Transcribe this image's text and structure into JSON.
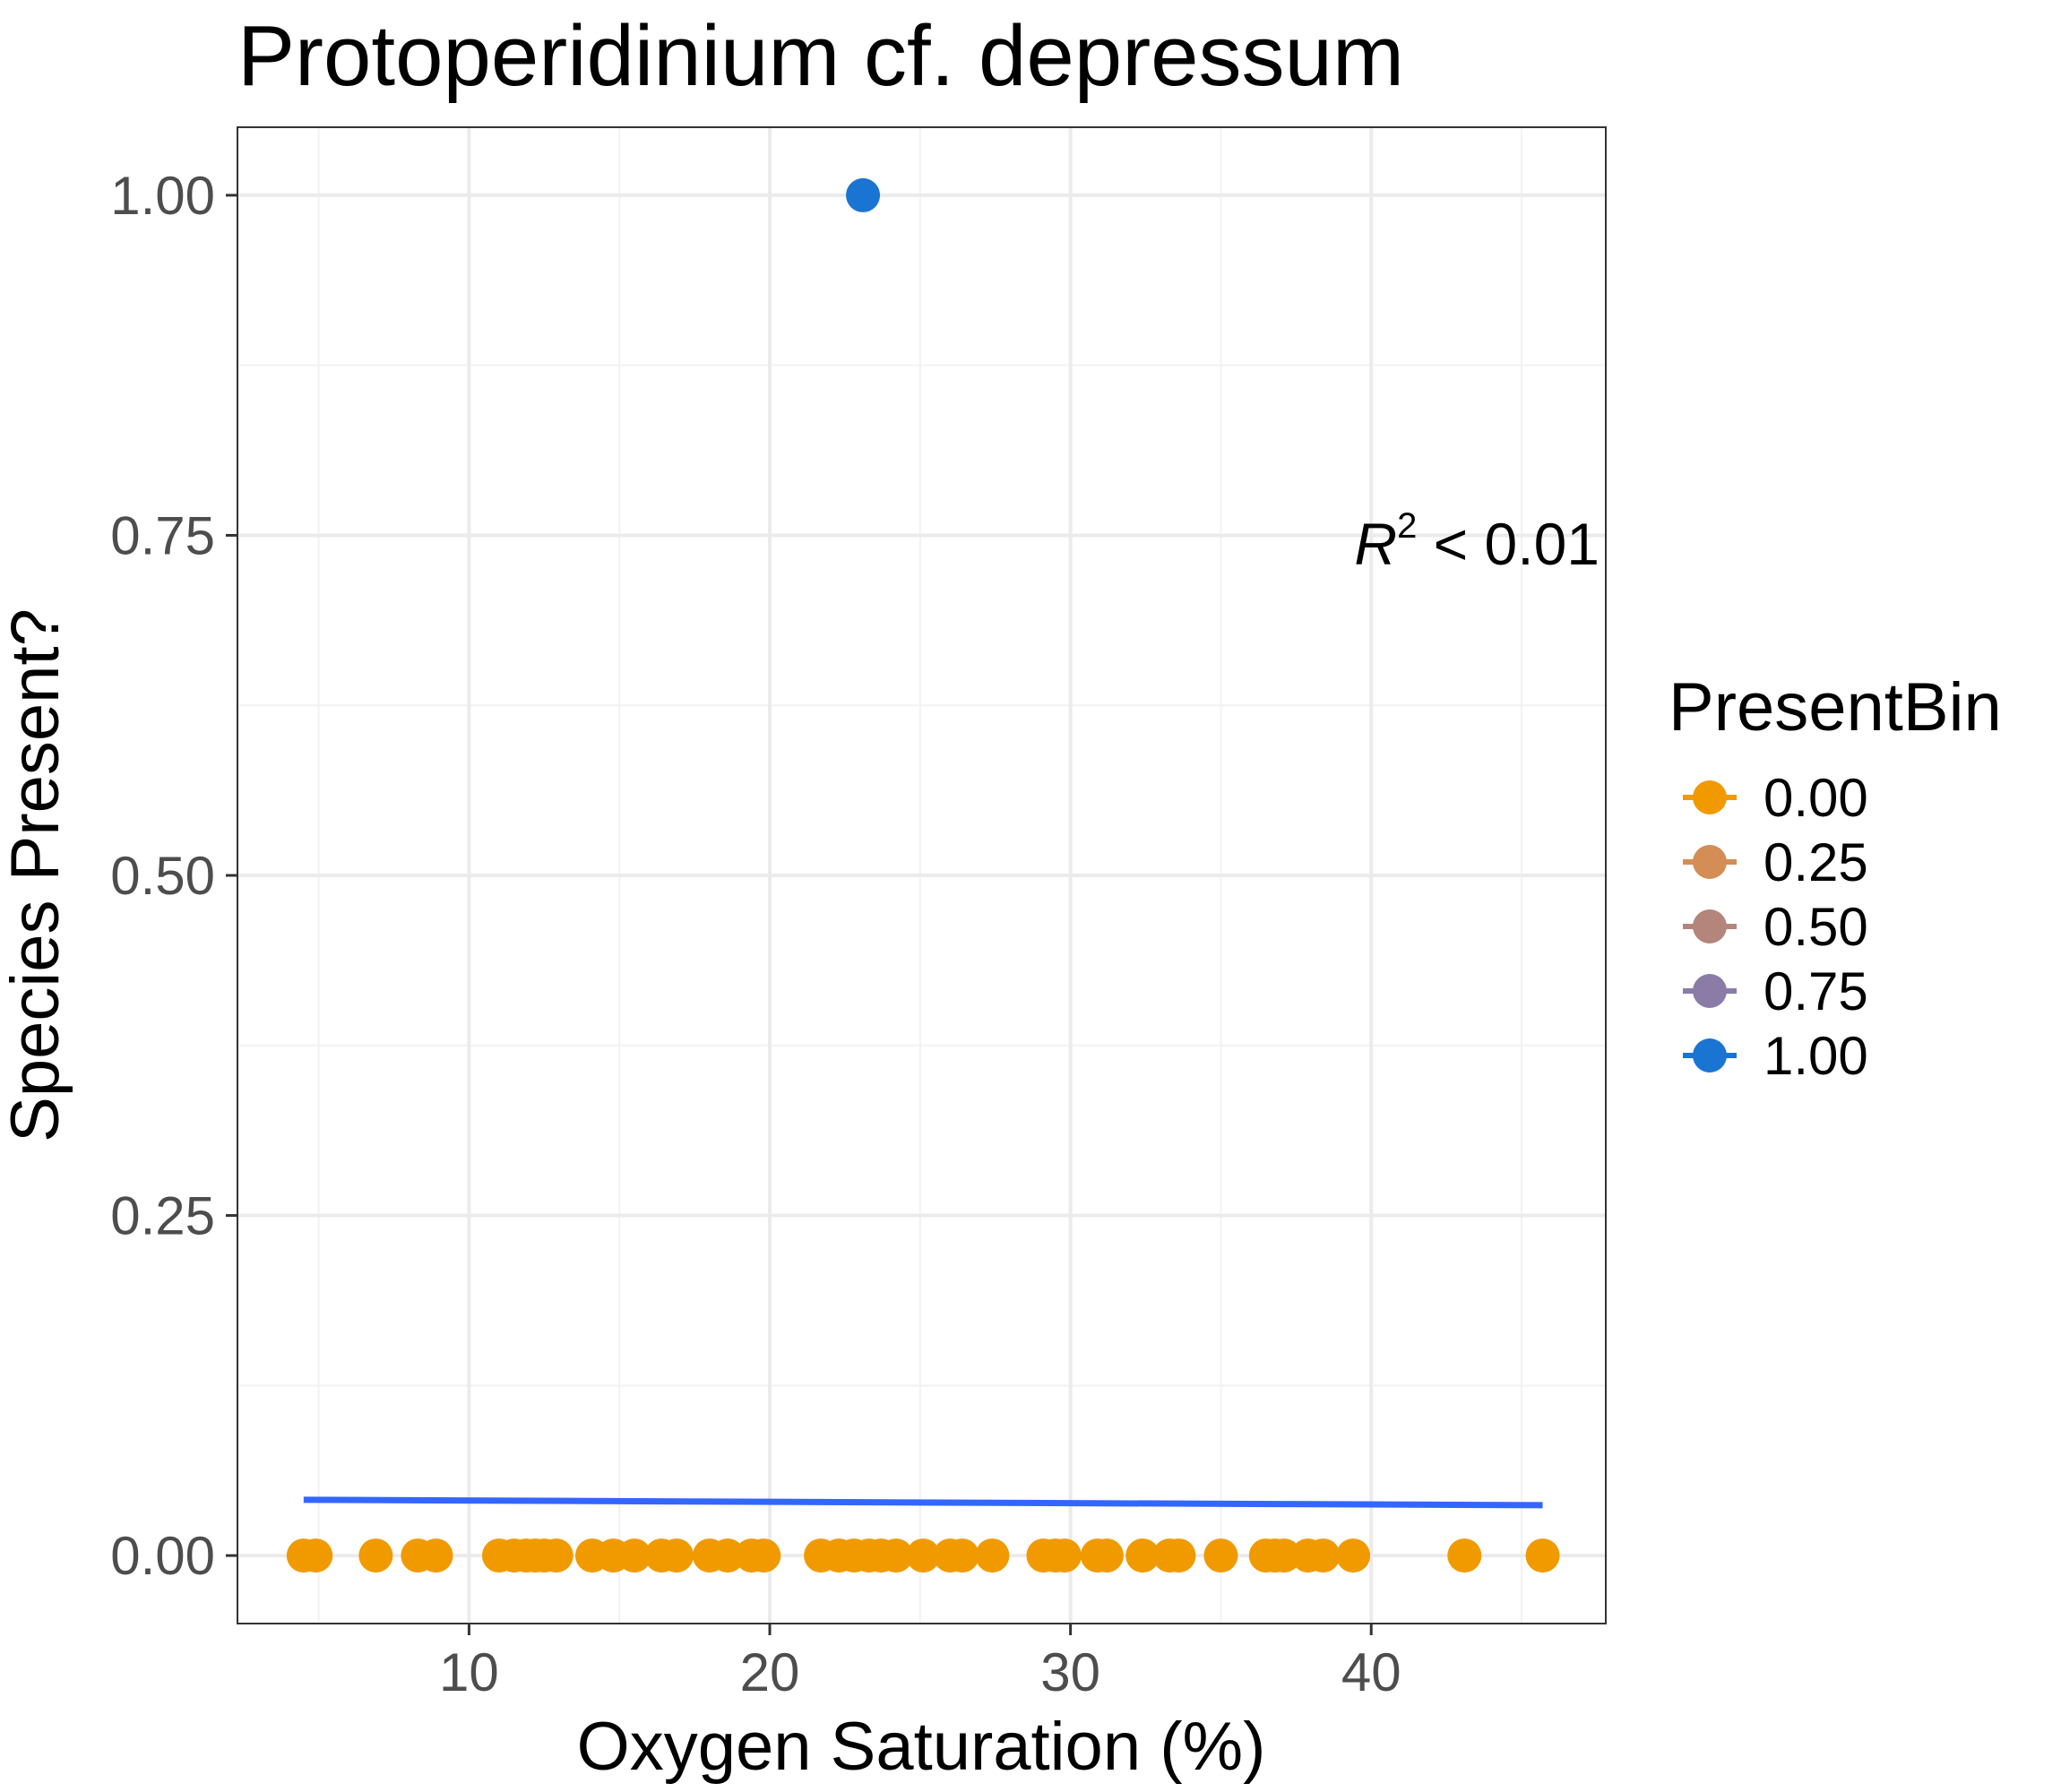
{
  "chart_data": {
    "type": "scatter",
    "title": "Protoperidinium cf. depressum",
    "xlabel": "Oxygen Saturation (%)",
    "ylabel": "Species Present?",
    "xlim": [
      2.3,
      47.8
    ],
    "ylim": [
      -0.05,
      1.05
    ],
    "x_ticks": [
      10,
      20,
      30,
      40
    ],
    "x_tick_labels": [
      "10",
      "20",
      "30",
      "40"
    ],
    "y_ticks": [
      0,
      0.25,
      0.5,
      0.75,
      1
    ],
    "y_tick_labels": [
      "0.00",
      "0.25",
      "0.50",
      "0.75",
      "1.00"
    ],
    "grid": true,
    "annotation": {
      "base": "R",
      "superscript": "2",
      "text": " < 0.01"
    },
    "legend": {
      "title": "PresentBin",
      "placement": "right",
      "entries": [
        {
          "label": "0.00",
          "color": "#f09a00"
        },
        {
          "label": "0.25",
          "color": "#d38d55"
        },
        {
          "label": "0.50",
          "color": "#b4857a"
        },
        {
          "label": "0.75",
          "color": "#8a7ca6"
        },
        {
          "label": "1.00",
          "color": "#1a74d1"
        }
      ]
    },
    "series": [
      {
        "values_color": "#f09a00",
        "points": [
          [
            4.5,
            0
          ],
          [
            4.9,
            0
          ],
          [
            6.9,
            0
          ],
          [
            8.3,
            0
          ],
          [
            8.9,
            0
          ],
          [
            11.0,
            0
          ],
          [
            11.5,
            0
          ],
          [
            11.9,
            0
          ],
          [
            12.2,
            0
          ],
          [
            12.5,
            0
          ],
          [
            12.9,
            0
          ],
          [
            14.1,
            0
          ],
          [
            14.8,
            0
          ],
          [
            15.5,
            0
          ],
          [
            16.4,
            0
          ],
          [
            16.9,
            0
          ],
          [
            18.0,
            0
          ],
          [
            18.6,
            0
          ],
          [
            19.4,
            0
          ],
          [
            19.8,
            0
          ],
          [
            21.7,
            0
          ],
          [
            22.3,
            0
          ],
          [
            22.8,
            0
          ],
          [
            23.3,
            0
          ],
          [
            23.7,
            0
          ],
          [
            24.2,
            0
          ],
          [
            25.1,
            0
          ],
          [
            26.0,
            0
          ],
          [
            26.4,
            0
          ],
          [
            27.4,
            0
          ],
          [
            29.1,
            0
          ],
          [
            29.5,
            0
          ],
          [
            29.8,
            0
          ],
          [
            30.9,
            0
          ],
          [
            31.2,
            0
          ],
          [
            32.4,
            0
          ],
          [
            33.3,
            0
          ],
          [
            33.6,
            0
          ],
          [
            35.0,
            0
          ],
          [
            36.5,
            0
          ],
          [
            36.8,
            0
          ],
          [
            37.1,
            0
          ],
          [
            37.9,
            0
          ],
          [
            38.4,
            0
          ],
          [
            39.4,
            0
          ],
          [
            43.1,
            0
          ],
          [
            45.7,
            0
          ]
        ]
      },
      {
        "values_color": "#1a74d1",
        "points": [
          [
            23.1,
            1
          ]
        ]
      }
    ],
    "trend_line": {
      "color": "#3366ff",
      "x": [
        4.5,
        45.7
      ],
      "y": [
        0.041,
        0.037
      ]
    }
  }
}
